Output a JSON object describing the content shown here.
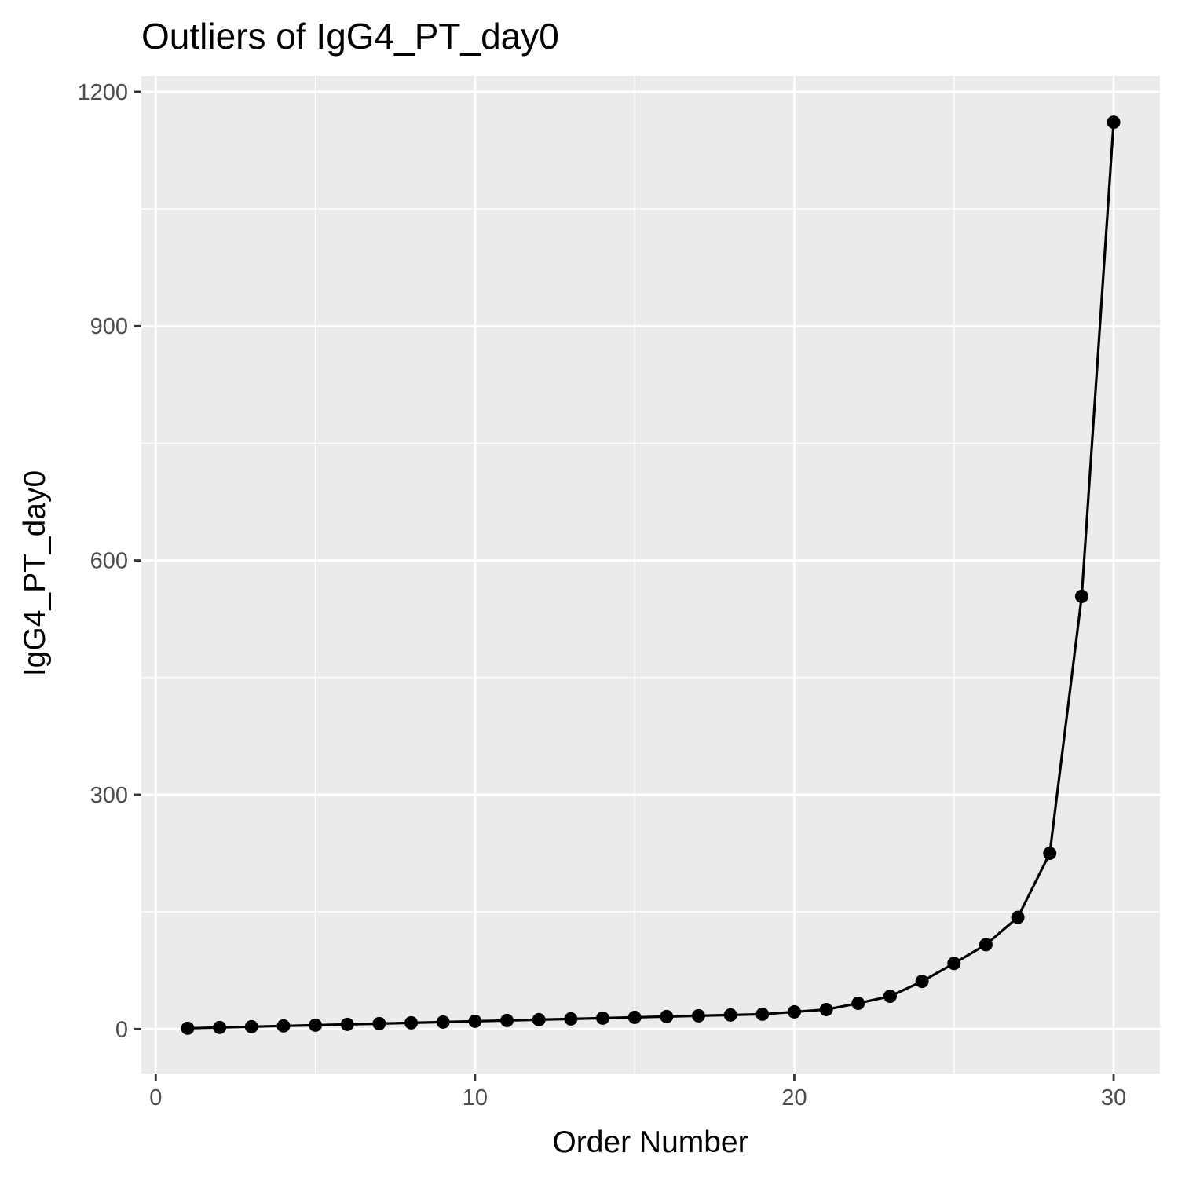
{
  "chart_data": {
    "type": "line",
    "title": "Outliers of IgG4_PT_day0",
    "xlabel": "Order Number",
    "ylabel": "IgG4_PT_day0",
    "xlim": [
      -0.45,
      31.45
    ],
    "ylim": [
      -57,
      1220
    ],
    "x_ticks": [
      0,
      10,
      20,
      30
    ],
    "x_tick_labels": [
      "0",
      "10",
      "20",
      "30"
    ],
    "x_minor_ticks": [
      5,
      15,
      25
    ],
    "y_ticks": [
      0,
      300,
      600,
      900,
      1200
    ],
    "y_tick_labels": [
      "0",
      "300",
      "600",
      "900",
      "1200"
    ],
    "y_minor_ticks": [
      150,
      450,
      750,
      1050
    ],
    "grid": true,
    "legend": "none",
    "colors": {
      "panel_background": "#ebebeb",
      "grid": "#ffffff",
      "line": "#000000",
      "points": "#000000"
    },
    "series": [
      {
        "x": [
          1,
          2,
          3,
          4,
          5,
          6,
          7,
          8,
          9,
          10,
          11,
          12,
          13,
          14,
          15,
          16,
          17,
          18,
          19,
          20,
          21,
          22,
          23,
          24,
          25,
          26,
          27,
          28,
          29,
          30
        ],
        "values": [
          1,
          2,
          3,
          4,
          5,
          6,
          7,
          8,
          9,
          10,
          11,
          12,
          13,
          14,
          15,
          16,
          17,
          18,
          19,
          22,
          25,
          33,
          42,
          61,
          84,
          108,
          143,
          225,
          554,
          1161
        ]
      }
    ]
  }
}
